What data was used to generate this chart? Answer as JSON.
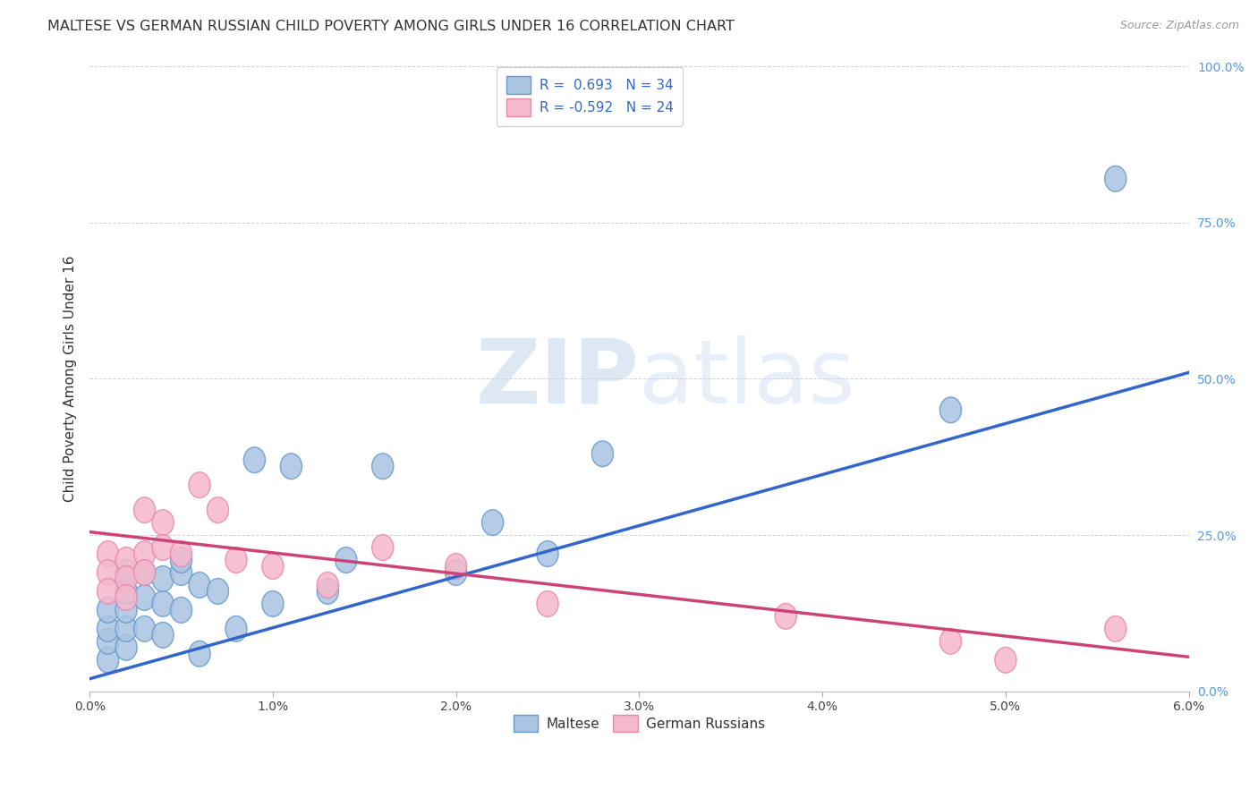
{
  "title": "MALTESE VS GERMAN RUSSIAN CHILD POVERTY AMONG GIRLS UNDER 16 CORRELATION CHART",
  "source": "Source: ZipAtlas.com",
  "ylabel": "Child Poverty Among Girls Under 16",
  "xlim": [
    0.0,
    0.06
  ],
  "ylim": [
    0.0,
    1.0
  ],
  "xticks": [
    0.0,
    0.01,
    0.02,
    0.03,
    0.04,
    0.05,
    0.06
  ],
  "xticklabels": [
    "0.0%",
    "1.0%",
    "2.0%",
    "3.0%",
    "4.0%",
    "5.0%",
    "6.0%"
  ],
  "yticks": [
    0.0,
    0.25,
    0.5,
    0.75,
    1.0
  ],
  "yticklabels": [
    "0.0%",
    "25.0%",
    "50.0%",
    "75.0%",
    "100.0%"
  ],
  "maltese_color": "#aac4e2",
  "maltese_edge_color": "#6699cc",
  "german_russian_color": "#f5b8cc",
  "german_russian_edge_color": "#e888a8",
  "maltese_line_color": "#3366cc",
  "german_russian_line_color": "#cc4477",
  "R_maltese": 0.693,
  "N_maltese": 34,
  "R_german_russian": -0.592,
  "N_german_russian": 24,
  "maltese_x": [
    0.001,
    0.001,
    0.001,
    0.001,
    0.002,
    0.002,
    0.002,
    0.002,
    0.002,
    0.003,
    0.003,
    0.003,
    0.004,
    0.004,
    0.004,
    0.005,
    0.005,
    0.005,
    0.006,
    0.006,
    0.007,
    0.008,
    0.009,
    0.01,
    0.011,
    0.013,
    0.014,
    0.016,
    0.02,
    0.022,
    0.025,
    0.028,
    0.047,
    0.056
  ],
  "maltese_y": [
    0.05,
    0.08,
    0.1,
    0.13,
    0.07,
    0.1,
    0.13,
    0.16,
    0.19,
    0.1,
    0.15,
    0.19,
    0.09,
    0.14,
    0.18,
    0.13,
    0.19,
    0.21,
    0.06,
    0.17,
    0.16,
    0.1,
    0.37,
    0.14,
    0.36,
    0.16,
    0.21,
    0.36,
    0.19,
    0.27,
    0.22,
    0.38,
    0.45,
    0.82
  ],
  "german_russian_x": [
    0.001,
    0.001,
    0.001,
    0.002,
    0.002,
    0.002,
    0.003,
    0.003,
    0.003,
    0.004,
    0.004,
    0.005,
    0.006,
    0.007,
    0.008,
    0.01,
    0.013,
    0.016,
    0.02,
    0.025,
    0.038,
    0.047,
    0.05,
    0.056
  ],
  "german_russian_y": [
    0.22,
    0.19,
    0.16,
    0.21,
    0.18,
    0.15,
    0.29,
    0.22,
    0.19,
    0.27,
    0.23,
    0.22,
    0.33,
    0.29,
    0.21,
    0.2,
    0.17,
    0.23,
    0.2,
    0.14,
    0.12,
    0.08,
    0.05,
    0.1
  ],
  "blue_line_x0": 0.0,
  "blue_line_y0": 0.02,
  "blue_line_x1": 0.06,
  "blue_line_y1": 0.51,
  "pink_line_x0": 0.0,
  "pink_line_y0": 0.255,
  "pink_line_x1": 0.06,
  "pink_line_y1": 0.055,
  "watermark_zip": "ZIP",
  "watermark_atlas": "atlas",
  "background_color": "#ffffff",
  "grid_color": "#cccccc",
  "title_fontsize": 11.5,
  "label_fontsize": 11
}
